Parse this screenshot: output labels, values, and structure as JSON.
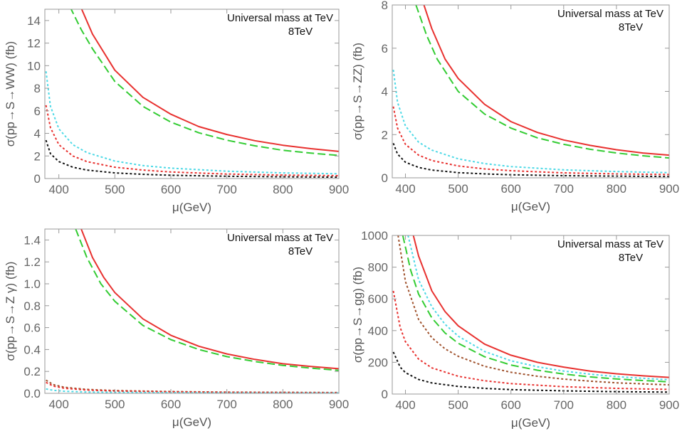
{
  "chart_data": [
    {
      "type": "line",
      "ylabel": "σ(pp→S→WW) (fb)",
      "xlabel": "μ(GeV)",
      "annotation": [
        "Universal mass at TeV",
        "8TeV"
      ],
      "xlim": [
        375,
        900
      ],
      "ylim": [
        0,
        15
      ],
      "xticks": [
        400,
        500,
        600,
        700,
        800,
        900
      ],
      "yticks": [
        0,
        2,
        4,
        6,
        8,
        10,
        12,
        14
      ],
      "grid": false,
      "series": [
        {
          "color": "#e8312f",
          "dash": "solid",
          "x": [
            440,
            460,
            500,
            550,
            600,
            650,
            700,
            750,
            800,
            850,
            900
          ],
          "values": [
            15.1,
            12.8,
            9.6,
            7.2,
            5.7,
            4.6,
            3.9,
            3.35,
            2.95,
            2.65,
            2.4
          ]
        },
        {
          "color": "#33cc33",
          "dash": "dashed",
          "x": [
            420,
            440,
            460,
            500,
            550,
            600,
            650,
            700,
            750,
            800,
            850,
            900
          ],
          "values": [
            15.2,
            13.2,
            11.5,
            8.6,
            6.4,
            5.0,
            4.05,
            3.4,
            2.9,
            2.5,
            2.25,
            2.05
          ]
        },
        {
          "color": "#4dd9e6",
          "dash": "dotted",
          "x": [
            377,
            385,
            400,
            425,
            450,
            500,
            550,
            600,
            700,
            800,
            900
          ],
          "values": [
            9.5,
            6.4,
            4.4,
            3.0,
            2.3,
            1.55,
            1.15,
            0.92,
            0.65,
            0.5,
            0.42
          ]
        },
        {
          "color": "#e8312f",
          "dash": "dotted",
          "x": [
            377,
            385,
            400,
            425,
            450,
            500,
            550,
            600,
            700,
            800,
            900
          ],
          "values": [
            6.5,
            4.5,
            3.0,
            2.0,
            1.5,
            1.0,
            0.75,
            0.58,
            0.4,
            0.3,
            0.25
          ]
        },
        {
          "color": "#111111",
          "dash": "dotted",
          "x": [
            377,
            385,
            400,
            425,
            450,
            500,
            550,
            600,
            700,
            800,
            900
          ],
          "values": [
            3.4,
            2.2,
            1.5,
            1.0,
            0.75,
            0.5,
            0.37,
            0.29,
            0.2,
            0.15,
            0.12
          ]
        }
      ]
    },
    {
      "type": "line",
      "ylabel": "σ(pp→S→ZZ) (fb)",
      "xlabel": "μ(GeV)",
      "annotation": [
        "Universal mass at TeV",
        "8TeV"
      ],
      "xlim": [
        375,
        900
      ],
      "ylim": [
        0,
        8
      ],
      "xticks": [
        400,
        500,
        600,
        700,
        800,
        900
      ],
      "yticks": [
        0,
        2,
        4,
        6,
        8
      ],
      "grid": false,
      "series": [
        {
          "color": "#e8312f",
          "dash": "solid",
          "x": [
            435,
            450,
            475,
            500,
            550,
            600,
            650,
            700,
            750,
            800,
            850,
            900
          ],
          "values": [
            8.0,
            6.9,
            5.5,
            4.6,
            3.4,
            2.6,
            2.1,
            1.75,
            1.5,
            1.3,
            1.15,
            1.05
          ]
        },
        {
          "color": "#33cc33",
          "dash": "dashed",
          "x": [
            420,
            440,
            460,
            500,
            550,
            600,
            650,
            700,
            750,
            800,
            850,
            900
          ],
          "values": [
            8.0,
            6.6,
            5.5,
            4.0,
            2.95,
            2.3,
            1.85,
            1.55,
            1.32,
            1.15,
            1.02,
            0.92
          ]
        },
        {
          "color": "#4dd9e6",
          "dash": "dotted",
          "x": [
            377,
            385,
            400,
            425,
            450,
            500,
            550,
            600,
            700,
            800,
            900
          ],
          "values": [
            5.0,
            3.5,
            2.4,
            1.65,
            1.28,
            0.88,
            0.66,
            0.52,
            0.37,
            0.29,
            0.24
          ]
        },
        {
          "color": "#e8312f",
          "dash": "dotted",
          "x": [
            377,
            385,
            400,
            425,
            450,
            500,
            550,
            600,
            700,
            800,
            900
          ],
          "values": [
            3.3,
            2.3,
            1.55,
            1.05,
            0.8,
            0.55,
            0.41,
            0.33,
            0.23,
            0.18,
            0.15
          ]
        },
        {
          "color": "#111111",
          "dash": "dotted",
          "x": [
            377,
            385,
            400,
            425,
            450,
            500,
            550,
            600,
            700,
            800,
            900
          ],
          "values": [
            1.6,
            1.1,
            0.72,
            0.48,
            0.36,
            0.24,
            0.18,
            0.14,
            0.1,
            0.08,
            0.06
          ]
        }
      ]
    },
    {
      "type": "line",
      "ylabel": "σ(pp→S→Z γ) (fb)",
      "xlabel": "μ(GeV)",
      "annotation": [
        "Universal mass at TeV",
        "8TeV"
      ],
      "xlim": [
        375,
        900
      ],
      "ylim": [
        0,
        1.5
      ],
      "xticks": [
        400,
        500,
        600,
        700,
        800,
        900
      ],
      "yticks": [
        0.0,
        0.2,
        0.4,
        0.6,
        0.8,
        1.0,
        1.2,
        1.4
      ],
      "grid": false,
      "series": [
        {
          "color": "#e8312f",
          "dash": "solid",
          "x": [
            440,
            460,
            480,
            500,
            550,
            600,
            650,
            700,
            750,
            800,
            850,
            900
          ],
          "values": [
            1.5,
            1.24,
            1.06,
            0.92,
            0.68,
            0.53,
            0.43,
            0.36,
            0.31,
            0.27,
            0.245,
            0.225
          ]
        },
        {
          "color": "#33cc33",
          "dash": "dashed",
          "x": [
            430,
            450,
            475,
            500,
            550,
            600,
            650,
            700,
            750,
            800,
            850,
            900
          ],
          "values": [
            1.5,
            1.24,
            1.0,
            0.84,
            0.62,
            0.49,
            0.4,
            0.335,
            0.29,
            0.255,
            0.23,
            0.21
          ]
        },
        {
          "color": "#a0522d",
          "dash": "dotted",
          "x": [
            377,
            390,
            410,
            450,
            500,
            600,
            700,
            800,
            900
          ],
          "values": [
            0.12,
            0.08,
            0.055,
            0.036,
            0.025,
            0.016,
            0.011,
            0.009,
            0.007
          ]
        },
        {
          "color": "#e8312f",
          "dash": "dotted",
          "x": [
            377,
            390,
            410,
            450,
            500,
            600,
            700,
            800,
            900
          ],
          "values": [
            0.1,
            0.066,
            0.046,
            0.03,
            0.021,
            0.013,
            0.009,
            0.007,
            0.006
          ]
        },
        {
          "color": "#4dd9e6",
          "dash": "dotted",
          "x": [
            377,
            390,
            410,
            450,
            500,
            600,
            700,
            800,
            900
          ],
          "values": [
            0.04,
            0.027,
            0.019,
            0.012,
            0.009,
            0.006,
            0.004,
            0.003,
            0.003
          ]
        }
      ]
    },
    {
      "type": "line",
      "ylabel": "σ(pp→S→gg) (fb)",
      "xlabel": "μ(GeV)",
      "annotation": [
        "Universal mass at TeV",
        "8TeV"
      ],
      "xlim": [
        375,
        900
      ],
      "ylim": [
        0,
        1000
      ],
      "xticks": [
        400,
        500,
        600,
        700,
        800,
        900
      ],
      "yticks": [
        0,
        200,
        400,
        600,
        800,
        1000
      ],
      "grid": false,
      "series": [
        {
          "color": "#e8312f",
          "dash": "solid",
          "x": [
            415,
            425,
            450,
            475,
            500,
            550,
            600,
            650,
            700,
            750,
            800,
            850,
            900
          ],
          "values": [
            1000,
            870,
            650,
            520,
            430,
            315,
            245,
            200,
            170,
            145,
            128,
            115,
            105
          ]
        },
        {
          "color": "#4dd9e6",
          "dash": "dotted",
          "x": [
            405,
            425,
            450,
            475,
            500,
            550,
            600,
            650,
            700,
            750,
            800,
            850,
            900
          ],
          "values": [
            1000,
            720,
            550,
            440,
            365,
            268,
            210,
            172,
            145,
            125,
            110,
            99,
            90
          ]
        },
        {
          "color": "#33cc33",
          "dash": "dashed",
          "x": [
            395,
            410,
            425,
            450,
            475,
            500,
            550,
            600,
            650,
            700,
            750,
            800,
            850,
            900
          ],
          "values": [
            1000,
            780,
            630,
            480,
            385,
            320,
            235,
            183,
            150,
            126,
            108,
            95,
            85,
            77
          ]
        },
        {
          "color": "#a0522d",
          "dash": "dotted",
          "x": [
            386,
            400,
            425,
            450,
            475,
            500,
            550,
            600,
            650,
            700,
            750,
            800,
            850,
            900
          ],
          "values": [
            1000,
            710,
            470,
            355,
            285,
            238,
            175,
            137,
            112,
            94,
            81,
            71,
            64,
            58
          ]
        },
        {
          "color": "#e8312f",
          "dash": "dotted",
          "x": [
            377,
            390,
            400,
            425,
            450,
            500,
            550,
            600,
            700,
            800,
            900
          ],
          "values": [
            650,
            420,
            330,
            220,
            165,
            112,
            84,
            66,
            46,
            36,
            29
          ]
        },
        {
          "color": "#111111",
          "dash": "dotted",
          "x": [
            377,
            390,
            400,
            425,
            450,
            500,
            550,
            600,
            700,
            800,
            900
          ],
          "values": [
            265,
            170,
            135,
            92,
            70,
            48,
            36,
            28,
            20,
            15,
            12
          ]
        }
      ]
    }
  ]
}
